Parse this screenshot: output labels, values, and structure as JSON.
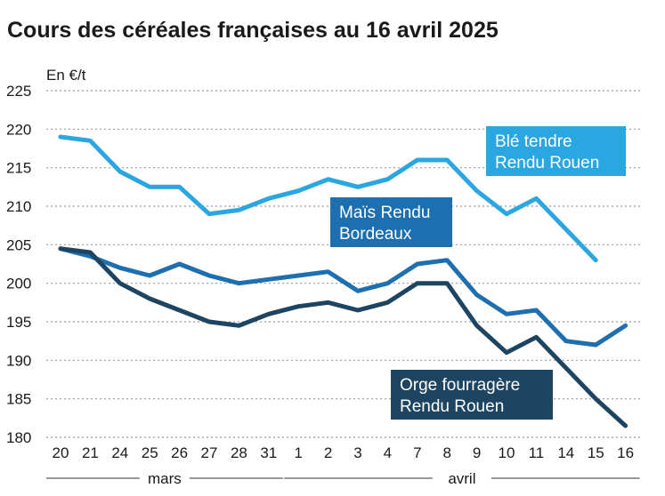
{
  "title": "Cours des céréales françaises au 16 avril 2025",
  "unit_label": "En €/t",
  "colors": {
    "ble": "#2aa6e0",
    "mais": "#1d6fb0",
    "orge": "#1d4460",
    "grid": "#9a9a9a"
  },
  "chart_data": {
    "type": "line",
    "title": "Cours des céréales françaises au 16 avril 2025",
    "ylabel": "En €/t",
    "ylim": [
      180,
      225
    ],
    "yticks": [
      180,
      185,
      190,
      195,
      200,
      205,
      210,
      215,
      220,
      225
    ],
    "categories": [
      "20",
      "21",
      "24",
      "25",
      "26",
      "27",
      "28",
      "31",
      "1",
      "2",
      "3",
      "4",
      "7",
      "8",
      "9",
      "10",
      "11",
      "14",
      "15",
      "16"
    ],
    "months": [
      {
        "name": "mars",
        "from": 0,
        "to": 7
      },
      {
        "name": "avril",
        "from": 8,
        "to": 19
      }
    ],
    "grid": "horizontal dotted",
    "series": [
      {
        "name": "Blé tendre Rendu Rouen",
        "label_lines": [
          "Blé tendre",
          "Rendu Rouen"
        ],
        "color": "#2aa6e0",
        "values": [
          219,
          218.5,
          214.5,
          212.5,
          212.5,
          209,
          209.5,
          211,
          212,
          213.5,
          212.5,
          213.5,
          216,
          216,
          212,
          209,
          211,
          207,
          203,
          null
        ]
      },
      {
        "name": "Maïs Rendu Bordeaux",
        "label_lines": [
          "Maïs Rendu",
          "Bordeaux"
        ],
        "color": "#1d6fb0",
        "values": [
          204.5,
          203.5,
          202,
          201,
          202.5,
          201,
          200,
          200.5,
          201,
          201.5,
          199,
          200,
          202.5,
          203,
          198.5,
          196,
          196.5,
          192.5,
          192,
          194.5
        ]
      },
      {
        "name": "Orge fourragère Rendu Rouen",
        "label_lines": [
          "Orge fourragère",
          "Rendu Rouen"
        ],
        "color": "#1d4460",
        "values": [
          204.5,
          204,
          200,
          198,
          196.5,
          195,
          194.5,
          196,
          197,
          197.5,
          196.5,
          197.5,
          200,
          200,
          194.5,
          191,
          193,
          189,
          185,
          181.5
        ]
      }
    ]
  }
}
